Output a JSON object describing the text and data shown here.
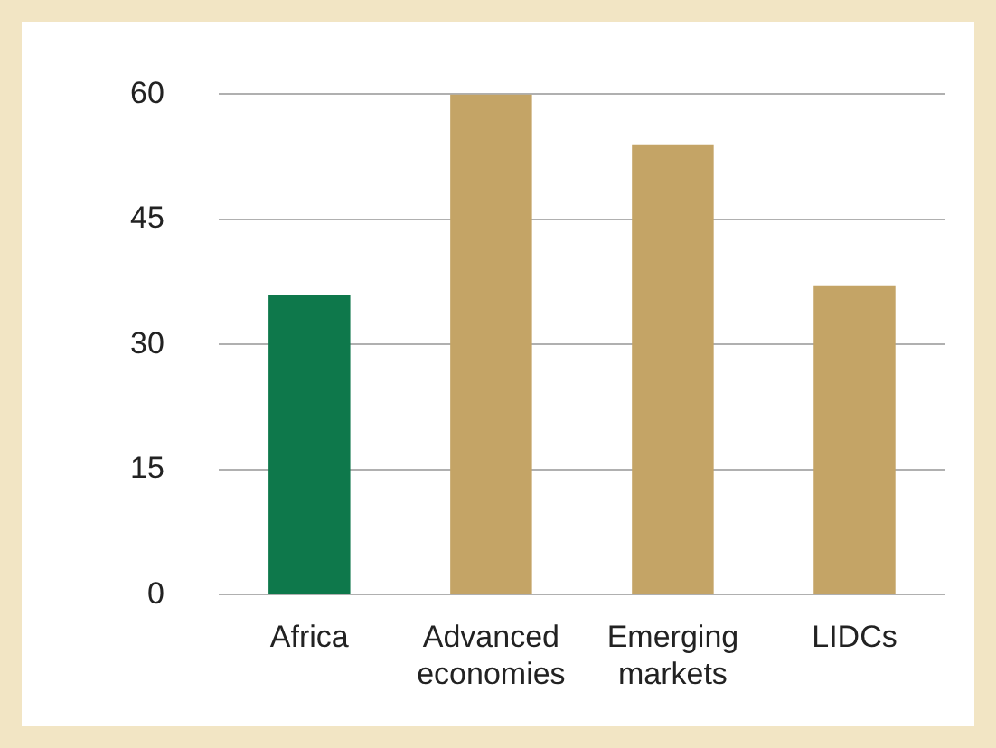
{
  "chart_data": {
    "type": "bar",
    "categories": [
      "Africa",
      "Advanced economies",
      "Emerging markets",
      "LIDCs"
    ],
    "values": [
      36,
      60,
      54,
      37
    ],
    "colors": [
      "#0e784b",
      "#c4a466",
      "#c4a466",
      "#c4a466"
    ],
    "ylim": [
      0,
      60
    ],
    "yticks": [
      0,
      15,
      30,
      45,
      60
    ],
    "grid": "y",
    "legend": false
  }
}
